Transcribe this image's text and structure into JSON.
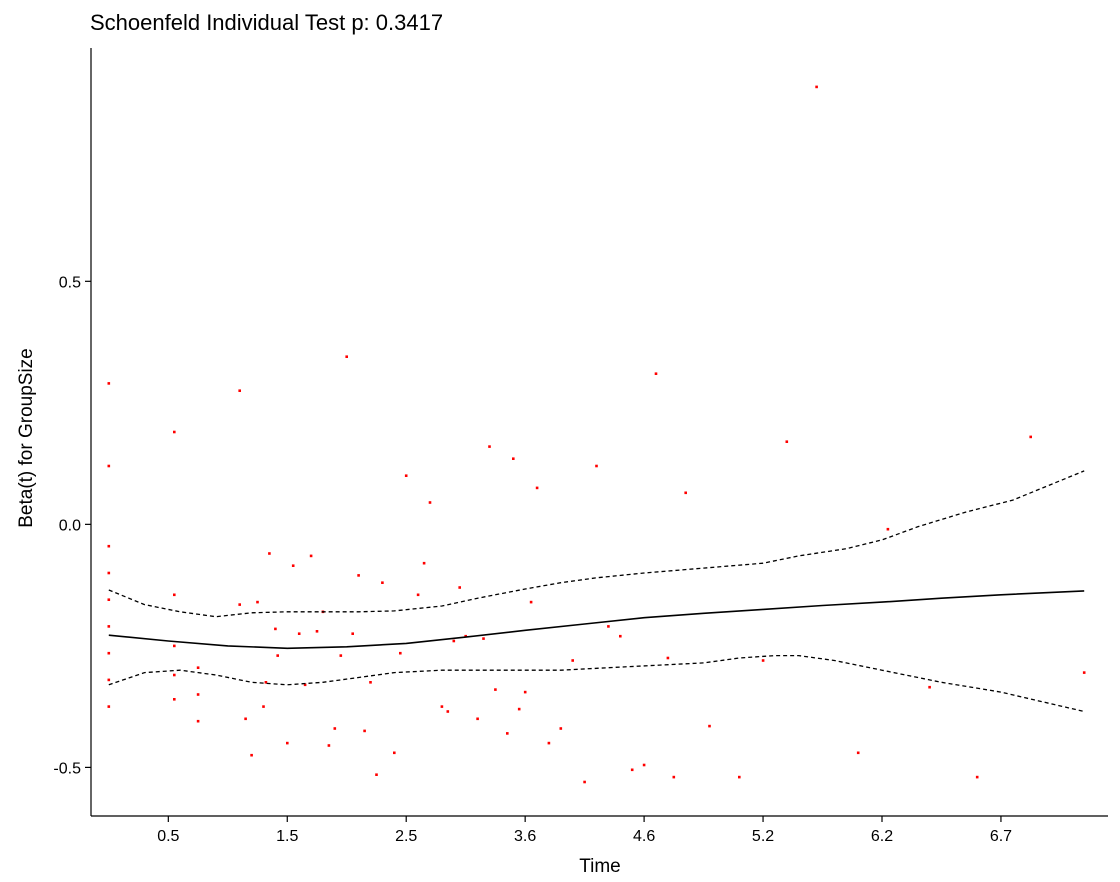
{
  "chart_data": {
    "type": "scatter",
    "title": "Schoenfeld Individual Test p: 0.3417",
    "xlabel": "Time",
    "ylabel": "Beta(t) for GroupSize",
    "grid": false,
    "x_ticks": [
      {
        "pos": 0.5,
        "label": "0.5"
      },
      {
        "pos": 1.5,
        "label": "1.5"
      },
      {
        "pos": 2.5,
        "label": "2.5"
      },
      {
        "pos": 3.5,
        "label": "3.6"
      },
      {
        "pos": 4.5,
        "label": "4.6"
      },
      {
        "pos": 5.5,
        "label": "5.2"
      },
      {
        "pos": 6.5,
        "label": "6.2"
      },
      {
        "pos": 7.5,
        "label": "6.7"
      }
    ],
    "y_ticks": [
      -0.5,
      0.0,
      0.5
    ],
    "xlim": [
      -0.15,
      8.4
    ],
    "ylim": [
      -0.6,
      0.98
    ],
    "colors": {
      "points": "#ff0000",
      "fit": "#000000",
      "band": "#000000"
    },
    "points": [
      [
        0,
        0.29
      ],
      [
        0,
        0.12
      ],
      [
        0,
        -0.045
      ],
      [
        0,
        -0.1
      ],
      [
        0,
        -0.155
      ],
      [
        0,
        -0.21
      ],
      [
        0,
        -0.265
      ],
      [
        0,
        -0.32
      ],
      [
        0,
        -0.375
      ],
      [
        0.55,
        0.19
      ],
      [
        0.55,
        -0.145
      ],
      [
        0.55,
        -0.25
      ],
      [
        0.55,
        -0.31
      ],
      [
        0.55,
        -0.36
      ],
      [
        0.75,
        -0.295
      ],
      [
        0.75,
        -0.35
      ],
      [
        0.75,
        -0.405
      ],
      [
        1.1,
        0.275
      ],
      [
        1.1,
        -0.165
      ],
      [
        1.15,
        -0.4
      ],
      [
        1.2,
        -0.475
      ],
      [
        1.25,
        -0.16
      ],
      [
        1.3,
        -0.375
      ],
      [
        1.32,
        -0.325
      ],
      [
        1.35,
        -0.06
      ],
      [
        1.4,
        -0.215
      ],
      [
        1.42,
        -0.27
      ],
      [
        1.5,
        -0.45
      ],
      [
        1.55,
        -0.085
      ],
      [
        1.6,
        -0.225
      ],
      [
        1.65,
        -0.33
      ],
      [
        1.7,
        -0.065
      ],
      [
        1.75,
        -0.22
      ],
      [
        1.8,
        -0.18
      ],
      [
        1.85,
        -0.455
      ],
      [
        1.9,
        -0.42
      ],
      [
        1.95,
        -0.27
      ],
      [
        2.0,
        0.345
      ],
      [
        2.05,
        -0.225
      ],
      [
        2.1,
        -0.105
      ],
      [
        2.15,
        -0.425
      ],
      [
        2.2,
        -0.325
      ],
      [
        2.25,
        -0.515
      ],
      [
        2.3,
        -0.12
      ],
      [
        2.4,
        -0.47
      ],
      [
        2.45,
        -0.265
      ],
      [
        2.5,
        0.1
      ],
      [
        2.6,
        -0.145
      ],
      [
        2.65,
        -0.08
      ],
      [
        2.7,
        0.045
      ],
      [
        2.8,
        -0.375
      ],
      [
        2.85,
        -0.385
      ],
      [
        2.9,
        -0.24
      ],
      [
        2.95,
        -0.13
      ],
      [
        3.0,
        -0.23
      ],
      [
        3.1,
        -0.4
      ],
      [
        3.15,
        -0.235
      ],
      [
        3.2,
        0.16
      ],
      [
        3.25,
        -0.34
      ],
      [
        3.35,
        -0.43
      ],
      [
        3.4,
        0.135
      ],
      [
        3.45,
        -0.38
      ],
      [
        3.5,
        -0.345
      ],
      [
        3.55,
        -0.16
      ],
      [
        3.6,
        0.075
      ],
      [
        3.7,
        -0.45
      ],
      [
        3.8,
        -0.42
      ],
      [
        3.9,
        -0.28
      ],
      [
        4.0,
        -0.53
      ],
      [
        4.1,
        0.12
      ],
      [
        4.2,
        -0.21
      ],
      [
        4.3,
        -0.23
      ],
      [
        4.4,
        -0.505
      ],
      [
        4.5,
        -0.495
      ],
      [
        4.6,
        0.31
      ],
      [
        4.7,
        -0.275
      ],
      [
        4.75,
        -0.52
      ],
      [
        4.85,
        0.065
      ],
      [
        5.05,
        -0.415
      ],
      [
        5.3,
        -0.52
      ],
      [
        5.5,
        -0.28
      ],
      [
        5.7,
        0.17
      ],
      [
        5.95,
        0.9
      ],
      [
        6.3,
        -0.47
      ],
      [
        6.55,
        -0.01
      ],
      [
        6.9,
        -0.335
      ],
      [
        7.3,
        -0.52
      ],
      [
        7.75,
        0.18
      ],
      [
        8.2,
        -0.305
      ]
    ],
    "fit": [
      [
        0,
        -0.228
      ],
      [
        0.5,
        -0.24
      ],
      [
        1.0,
        -0.25
      ],
      [
        1.5,
        -0.255
      ],
      [
        2.0,
        -0.252
      ],
      [
        2.5,
        -0.245
      ],
      [
        3.0,
        -0.232
      ],
      [
        3.5,
        -0.218
      ],
      [
        4.0,
        -0.205
      ],
      [
        4.5,
        -0.192
      ],
      [
        5.0,
        -0.183
      ],
      [
        5.5,
        -0.175
      ],
      [
        6.0,
        -0.167
      ],
      [
        6.5,
        -0.16
      ],
      [
        7.0,
        -0.152
      ],
      [
        7.5,
        -0.145
      ],
      [
        8.2,
        -0.137
      ]
    ],
    "upper": [
      [
        0,
        -0.135
      ],
      [
        0.3,
        -0.165
      ],
      [
        0.6,
        -0.18
      ],
      [
        0.9,
        -0.19
      ],
      [
        1.2,
        -0.182
      ],
      [
        1.5,
        -0.18
      ],
      [
        1.8,
        -0.18
      ],
      [
        2.1,
        -0.18
      ],
      [
        2.4,
        -0.178
      ],
      [
        2.8,
        -0.168
      ],
      [
        3.1,
        -0.152
      ],
      [
        3.5,
        -0.133
      ],
      [
        3.8,
        -0.12
      ],
      [
        4.1,
        -0.11
      ],
      [
        4.5,
        -0.1
      ],
      [
        5.0,
        -0.09
      ],
      [
        5.5,
        -0.08
      ],
      [
        5.8,
        -0.065
      ],
      [
        6.2,
        -0.05
      ],
      [
        6.5,
        -0.032
      ],
      [
        6.8,
        -0.005
      ],
      [
        7.2,
        0.025
      ],
      [
        7.6,
        0.05
      ],
      [
        8.2,
        0.11
      ]
    ],
    "lower": [
      [
        0,
        -0.33
      ],
      [
        0.3,
        -0.305
      ],
      [
        0.6,
        -0.3
      ],
      [
        0.9,
        -0.31
      ],
      [
        1.2,
        -0.325
      ],
      [
        1.5,
        -0.33
      ],
      [
        1.8,
        -0.325
      ],
      [
        2.1,
        -0.315
      ],
      [
        2.4,
        -0.305
      ],
      [
        2.8,
        -0.3
      ],
      [
        3.1,
        -0.3
      ],
      [
        3.5,
        -0.3
      ],
      [
        3.8,
        -0.3
      ],
      [
        4.2,
        -0.295
      ],
      [
        4.6,
        -0.29
      ],
      [
        5.0,
        -0.285
      ],
      [
        5.3,
        -0.275
      ],
      [
        5.6,
        -0.27
      ],
      [
        5.8,
        -0.27
      ],
      [
        6.1,
        -0.28
      ],
      [
        6.5,
        -0.3
      ],
      [
        7.0,
        -0.325
      ],
      [
        7.5,
        -0.345
      ],
      [
        8.2,
        -0.385
      ]
    ]
  }
}
